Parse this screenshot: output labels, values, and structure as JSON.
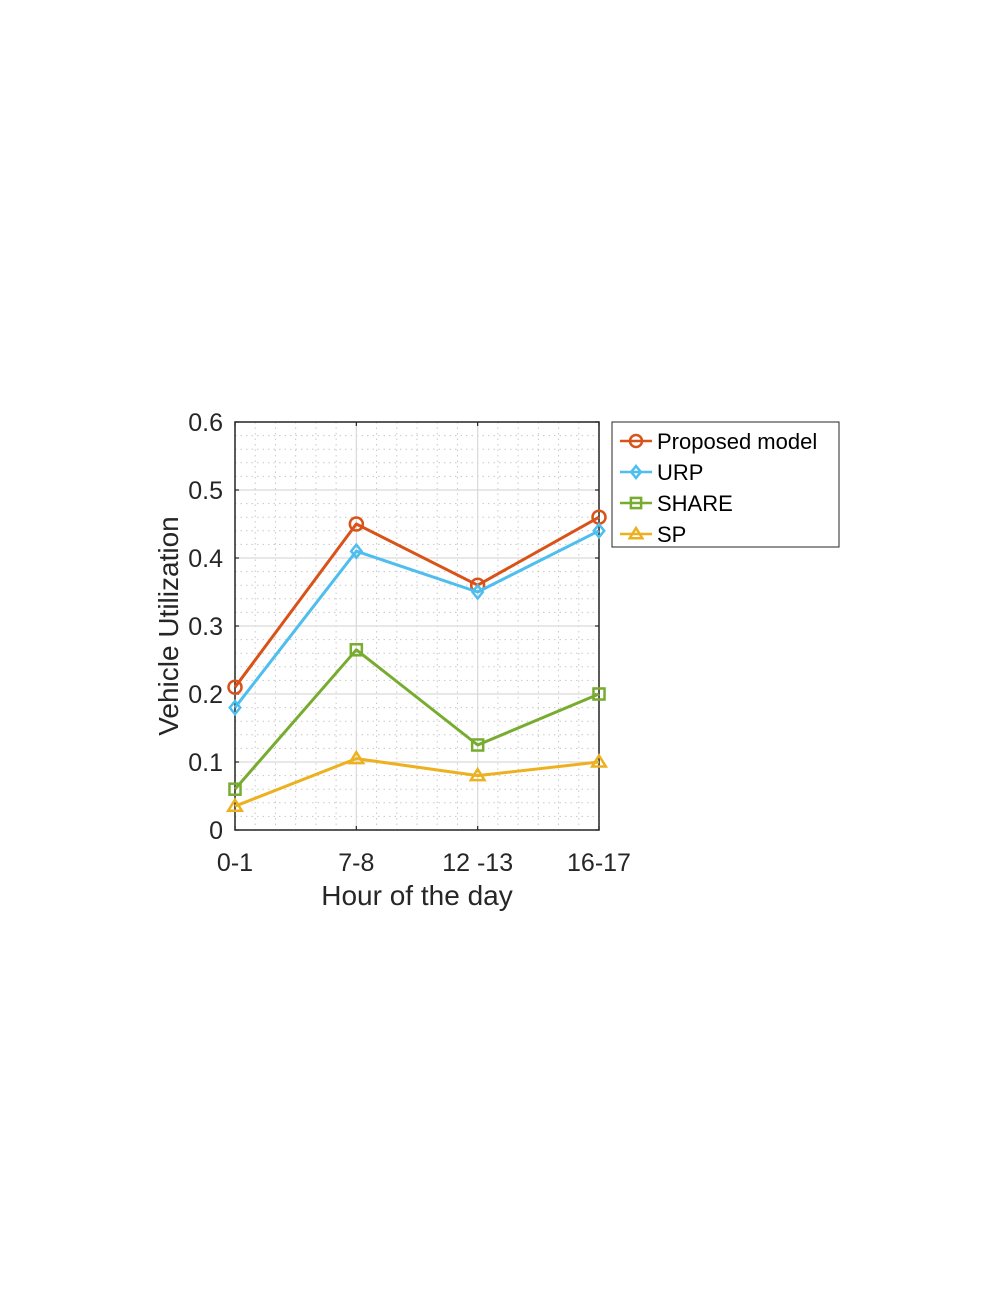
{
  "chart_data": {
    "type": "line",
    "categories": [
      "0-1",
      "7-8",
      "12 -13",
      "16-17"
    ],
    "xlabel": "Hour of the day",
    "ylabel": "Vehicle Utilization",
    "ylim": [
      0,
      0.6
    ],
    "yticks": [
      0,
      0.1,
      0.2,
      0.3,
      0.4,
      0.5,
      0.6
    ],
    "ytick_labels": [
      "0",
      "0.1",
      "0.2",
      "0.3",
      "0.4",
      "0.5",
      "0.6"
    ],
    "grid": true,
    "minor_grid": true,
    "legend_position": "outside-top-right",
    "series": [
      {
        "name": "Proposed model",
        "values": [
          0.21,
          0.45,
          0.36,
          0.46
        ],
        "color": "#D95319",
        "marker": "circle"
      },
      {
        "name": "URP",
        "values": [
          0.18,
          0.41,
          0.35,
          0.44
        ],
        "color": "#4DBEEE",
        "marker": "diamond"
      },
      {
        "name": "SHARE",
        "values": [
          0.06,
          0.265,
          0.125,
          0.2
        ],
        "color": "#77AC30",
        "marker": "square"
      },
      {
        "name": "SP",
        "values": [
          0.035,
          0.105,
          0.08,
          0.1
        ],
        "color": "#EDB120",
        "marker": "triangle"
      }
    ]
  }
}
